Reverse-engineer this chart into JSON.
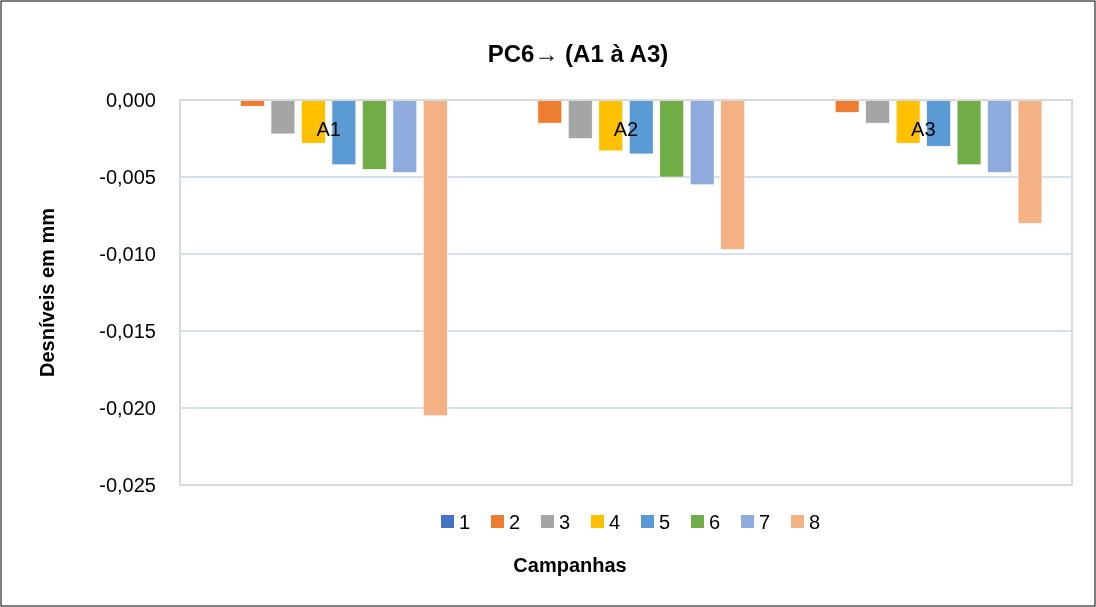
{
  "chart_data": {
    "type": "bar",
    "title": "PC6→ (A1 à A3)",
    "xlabel": "Campanhas",
    "ylabel": "Desníveis em mm",
    "categories": [
      "A1",
      "A2",
      "A3"
    ],
    "series": [
      {
        "name": "1",
        "color": "#4472c4",
        "values": [
          0,
          0,
          0
        ]
      },
      {
        "name": "2",
        "color": "#ed7d31",
        "values": [
          -0.0004,
          -0.0015,
          -0.0008
        ]
      },
      {
        "name": "3",
        "color": "#a5a5a5",
        "values": [
          -0.0022,
          -0.0025,
          -0.0015
        ]
      },
      {
        "name": "4",
        "color": "#ffc000",
        "values": [
          -0.0028,
          -0.0033,
          -0.0028
        ]
      },
      {
        "name": "5",
        "color": "#5b9bd5",
        "values": [
          -0.0042,
          -0.0035,
          -0.003
        ]
      },
      {
        "name": "6",
        "color": "#70ad47",
        "values": [
          -0.0045,
          -0.005,
          -0.0042
        ]
      },
      {
        "name": "7",
        "color": "#8faadc",
        "values": [
          -0.0047,
          -0.0055,
          -0.0047
        ]
      },
      {
        "name": "8",
        "color": "#f4b183",
        "values": [
          -0.0205,
          -0.0097,
          -0.008
        ]
      }
    ],
    "ylim": [
      -0.025,
      0
    ],
    "yticks": [
      {
        "value": -0.025,
        "label": "-0,025"
      },
      {
        "value": -0.02,
        "label": "-0,020"
      },
      {
        "value": -0.015,
        "label": "-0,015"
      },
      {
        "value": -0.01,
        "label": "-0,010"
      },
      {
        "value": -0.005,
        "label": "-0,005"
      },
      {
        "value": 0,
        "label": "0,000"
      }
    ],
    "grid": "y",
    "legend": "bottom"
  }
}
